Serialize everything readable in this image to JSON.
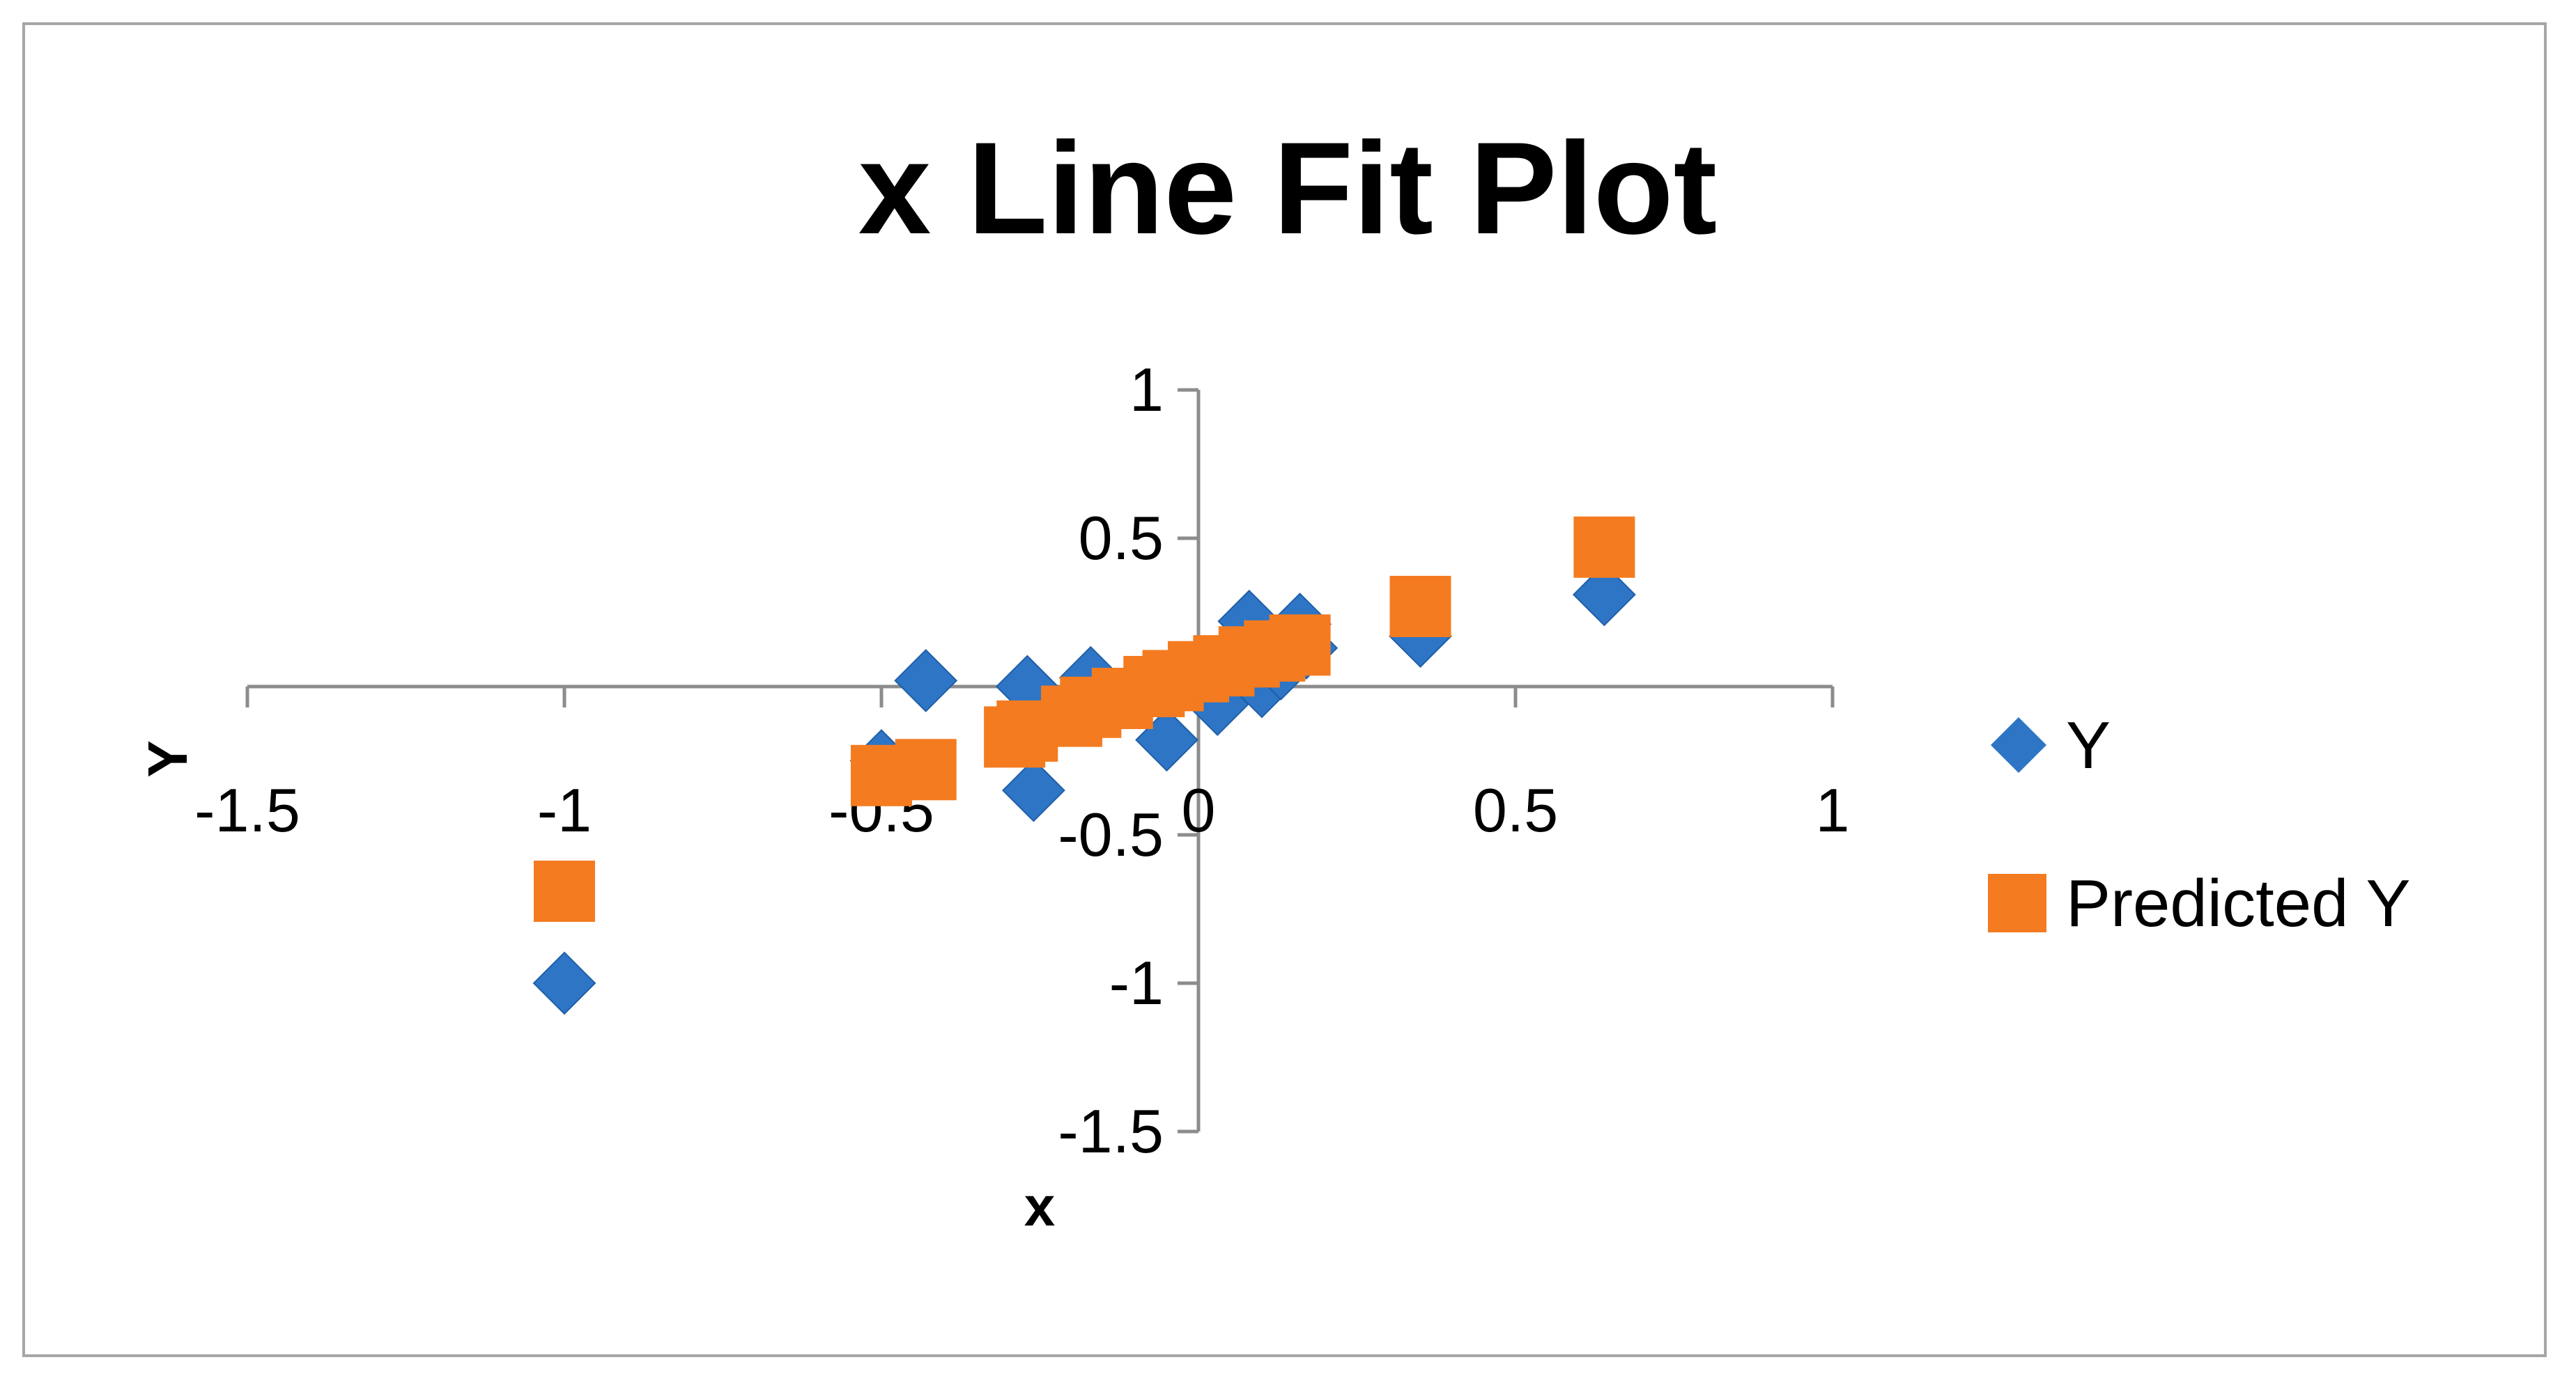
{
  "chart_data": {
    "type": "scatter",
    "title": "x Line Fit  Plot",
    "xlabel": "x",
    "ylabel": "Y",
    "xlim": [
      -1.5,
      1
    ],
    "ylim": [
      -1.5,
      1
    ],
    "x_ticks": [
      "-1.5",
      "-1",
      "-0.5",
      "0",
      "0.5",
      "1"
    ],
    "y_ticks": [
      "1",
      "0.5",
      "0",
      "-0.5",
      "-1",
      "-1.5"
    ],
    "grid": false,
    "legend_position": "right",
    "series": [
      {
        "name": "Y",
        "marker": "diamond",
        "color": "#2e75c6",
        "x": [
          -1.0,
          -0.5,
          -0.43,
          -0.27,
          -0.26,
          -0.17,
          -0.05,
          0.0,
          0.03,
          0.07,
          0.08,
          0.1,
          0.13,
          0.16,
          0.17,
          0.35,
          0.64
        ],
        "y": [
          -1.0,
          -0.25,
          0.02,
          0.0,
          -0.35,
          0.03,
          -0.18,
          0.06,
          -0.06,
          0.11,
          0.22,
          0.0,
          0.06,
          0.21,
          0.13,
          0.17,
          0.31
        ]
      },
      {
        "name": "Predicted Y",
        "marker": "square",
        "color": "#f47b20",
        "x": [
          -1.0,
          -0.5,
          -0.43,
          -0.29,
          -0.27,
          -0.2,
          -0.17,
          -0.12,
          -0.07,
          -0.04,
          0.0,
          0.04,
          0.08,
          0.12,
          0.16,
          0.35,
          0.64
        ],
        "y": [
          -0.69,
          -0.3,
          -0.28,
          -0.17,
          -0.15,
          -0.1,
          -0.07,
          -0.04,
          0.0,
          0.02,
          0.05,
          0.07,
          0.1,
          0.12,
          0.14,
          0.27,
          0.47
        ]
      }
    ]
  }
}
